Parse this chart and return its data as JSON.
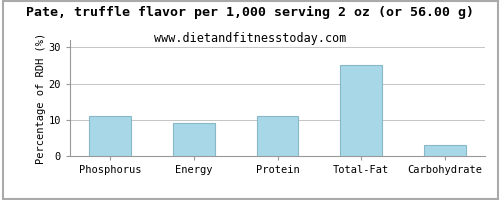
{
  "title": "Pate, truffle flavor per 1,000 serving 2 oz (or 56.00 g)",
  "subtitle": "www.dietandfitnesstoday.com",
  "categories": [
    "Phosphorus",
    "Energy",
    "Protein",
    "Total-Fat",
    "Carbohydrate"
  ],
  "values": [
    11,
    9,
    11,
    25,
    3
  ],
  "bar_color": "#a8d8e8",
  "bar_edge_color": "#88b8c8",
  "ylabel": "Percentage of RDH (%)",
  "ylim": [
    0,
    32
  ],
  "yticks": [
    0,
    10,
    20,
    30
  ],
  "background_color": "#ffffff",
  "title_fontsize": 9.5,
  "subtitle_fontsize": 8.5,
  "ylabel_fontsize": 7.5,
  "tick_fontsize": 7.5,
  "grid_color": "#bbbbbb",
  "border_color": "#aaaaaa"
}
